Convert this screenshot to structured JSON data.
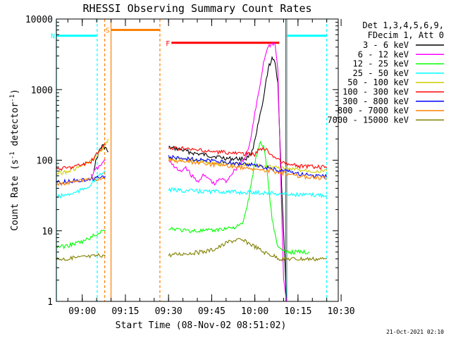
{
  "chart_data": {
    "type": "line",
    "title": "RHESSI Observing Summary Count Rates",
    "xlabel": "Start Time (08-Nov-02 08:51:02)",
    "ylabel_main": "Count Rate (s",
    "ylabel_sup1": "-1",
    "ylabel_mid": " detector",
    "ylabel_sup2": "-1",
    "ylabel_end": ")",
    "x_axis": {
      "unit": "minutes since 08:51:02",
      "range": [
        0,
        98
      ]
    },
    "y_axis": {
      "scale": "log",
      "range": [
        1,
        10000
      ]
    },
    "x_ticks": [
      {
        "label": "09:00",
        "minute": 9
      },
      {
        "label": "09:15",
        "minute": 24
      },
      {
        "label": "09:30",
        "minute": 39
      },
      {
        "label": "09:45",
        "minute": 54
      },
      {
        "label": "10:00",
        "minute": 69
      },
      {
        "label": "10:15",
        "minute": 84
      },
      {
        "label": "10:30",
        "minute": 99
      }
    ],
    "y_ticks": [
      {
        "label": "1",
        "value": 1
      },
      {
        "label": "10",
        "value": 10
      },
      {
        "label": "100",
        "value": 100
      },
      {
        "label": "1000",
        "value": 1000
      },
      {
        "label": "10000",
        "value": 10000
      }
    ],
    "legend_header": [
      "Det 1,3,4,5,6,9,",
      "FDecim 1, Att 0"
    ],
    "legend_placement": "right",
    "footer_date": "21-Oct-2021 02:10",
    "series": [
      {
        "name": "3 - 6 keV",
        "color": "#000000",
        "segments": [
          [
            [
              13,
              75
            ],
            [
              14,
              105
            ],
            [
              15,
              140
            ],
            [
              16,
              160
            ],
            [
              17,
              150
            ],
            [
              18,
              130
            ]
          ],
          [
            [
              39,
              150
            ],
            [
              42,
              145
            ],
            [
              45,
              135
            ],
            [
              48,
              125
            ],
            [
              51,
              120
            ],
            [
              54,
              115
            ],
            [
              57,
              110
            ],
            [
              60,
              105
            ],
            [
              63,
              105
            ],
            [
              66,
              105
            ],
            [
              68,
              130
            ],
            [
              70,
              300
            ],
            [
              72,
              700
            ],
            [
              73,
              1400
            ],
            [
              74,
              2200
            ],
            [
              75,
              2700
            ],
            [
              76,
              2400
            ],
            [
              77,
              1300
            ],
            [
              78,
              90
            ],
            [
              79,
              10
            ],
            [
              80,
              1
            ]
          ]
        ]
      },
      {
        "name": "6 - 12 keV",
        "color": "#ff00ff",
        "segments": [
          [
            [
              12,
              60
            ],
            [
              14,
              75
            ],
            [
              16,
              90
            ],
            [
              17,
              100
            ]
          ],
          [
            [
              39,
              110
            ],
            [
              41,
              80
            ],
            [
              43,
              68
            ],
            [
              45,
              80
            ],
            [
              47,
              60
            ],
            [
              49,
              50
            ],
            [
              51,
              60
            ],
            [
              53,
              55
            ],
            [
              55,
              45
            ],
            [
              57,
              55
            ],
            [
              59,
              50
            ],
            [
              61,
              65
            ],
            [
              63,
              80
            ],
            [
              65,
              100
            ],
            [
              67,
              150
            ],
            [
              69,
              450
            ],
            [
              71,
              1300
            ],
            [
              72,
              2400
            ],
            [
              73,
              3500
            ],
            [
              74,
              4200
            ],
            [
              75,
              4500
            ],
            [
              76,
              4400
            ],
            [
              77,
              2000
            ],
            [
              78,
              60
            ],
            [
              79,
              2
            ],
            [
              80,
              1
            ]
          ]
        ]
      },
      {
        "name": "12 - 25 keV",
        "color": "#00ff00",
        "segments": [
          [
            [
              0,
              6
            ],
            [
              3,
              6
            ],
            [
              6,
              6.5
            ],
            [
              9,
              7
            ],
            [
              12,
              8
            ],
            [
              14,
              9
            ],
            [
              16,
              10
            ],
            [
              17,
              10
            ]
          ],
          [
            [
              39,
              11
            ],
            [
              42,
              10.5
            ],
            [
              45,
              10
            ],
            [
              48,
              10
            ],
            [
              51,
              10
            ],
            [
              54,
              10
            ],
            [
              57,
              10.5
            ],
            [
              60,
              11
            ],
            [
              63,
              11.5
            ],
            [
              65,
              13
            ],
            [
              66,
              20
            ],
            [
              67,
              30
            ],
            [
              68,
              55
            ],
            [
              69,
              90
            ],
            [
              70,
              140
            ],
            [
              71,
              180
            ],
            [
              72,
              160
            ],
            [
              73,
              90
            ],
            [
              74,
              35
            ],
            [
              75,
              15
            ],
            [
              76,
              9
            ],
            [
              77,
              6
            ],
            [
              79,
              5
            ],
            [
              82,
              5
            ],
            [
              85,
              5
            ],
            [
              88,
              5
            ]
          ]
        ]
      },
      {
        "name": "25 - 50 keV",
        "color": "#00ffff",
        "segments": [
          [
            [
              0,
              30
            ],
            [
              3,
              32
            ],
            [
              6,
              34
            ],
            [
              9,
              38
            ],
            [
              12,
              45
            ],
            [
              14,
              55
            ],
            [
              16,
              65
            ],
            [
              17,
              70
            ]
          ],
          [
            [
              39,
              38
            ],
            [
              45,
              37
            ],
            [
              51,
              36
            ],
            [
              57,
              36
            ],
            [
              63,
              35
            ],
            [
              69,
              35
            ],
            [
              75,
              34
            ],
            [
              81,
              33
            ],
            [
              87,
              32
            ],
            [
              94,
              32
            ]
          ]
        ]
      },
      {
        "name": "50 - 100 keV",
        "color": "#cccc00",
        "segments": [
          [
            [
              0,
              65
            ],
            [
              4,
              70
            ],
            [
              8,
              80
            ],
            [
              12,
              95
            ],
            [
              15,
              130
            ],
            [
              17,
              160
            ],
            [
              18,
              200
            ]
          ],
          [
            [
              39,
              105
            ],
            [
              45,
              100
            ],
            [
              51,
              95
            ],
            [
              57,
              90
            ],
            [
              63,
              88
            ],
            [
              69,
              85
            ],
            [
              75,
              80
            ],
            [
              81,
              75
            ],
            [
              87,
              72
            ],
            [
              94,
              70
            ]
          ]
        ]
      },
      {
        "name": "100 - 300 keV",
        "color": "#ff0000",
        "segments": [
          [
            [
              0,
              75
            ],
            [
              4,
              78
            ],
            [
              8,
              85
            ],
            [
              12,
              95
            ],
            [
              14,
              120
            ],
            [
              16,
              150
            ],
            [
              17,
              170
            ]
          ],
          [
            [
              39,
              150
            ],
            [
              45,
              145
            ],
            [
              51,
              135
            ],
            [
              57,
              130
            ],
            [
              63,
              125
            ],
            [
              69,
              120
            ],
            [
              71,
              150
            ],
            [
              73,
              140
            ],
            [
              75,
              120
            ],
            [
              77,
              100
            ],
            [
              80,
              88
            ],
            [
              85,
              82
            ],
            [
              90,
              80
            ],
            [
              94,
              78
            ]
          ]
        ]
      },
      {
        "name": "300 - 800 keV",
        "color": "#0000ff",
        "segments": [
          [
            [
              0,
              48
            ],
            [
              4,
              50
            ],
            [
              8,
              52
            ],
            [
              12,
              55
            ],
            [
              15,
              58
            ],
            [
              17,
              60
            ]
          ],
          [
            [
              39,
              110
            ],
            [
              45,
              105
            ],
            [
              51,
              100
            ],
            [
              57,
              95
            ],
            [
              63,
              90
            ],
            [
              69,
              85
            ],
            [
              75,
              75
            ],
            [
              81,
              68
            ],
            [
              87,
              62
            ],
            [
              94,
              58
            ]
          ]
        ]
      },
      {
        "name": "800 - 7000 keV",
        "color": "#ff8000",
        "segments": [
          [
            [
              0,
              45
            ],
            [
              4,
              48
            ],
            [
              8,
              50
            ],
            [
              12,
              53
            ],
            [
              15,
              55
            ],
            [
              17,
              57
            ]
          ],
          [
            [
              39,
              100
            ],
            [
              45,
              95
            ],
            [
              51,
              90
            ],
            [
              57,
              85
            ],
            [
              63,
              80
            ],
            [
              69,
              75
            ],
            [
              75,
              70
            ],
            [
              81,
              63
            ],
            [
              87,
              58
            ],
            [
              94,
              55
            ]
          ]
        ]
      },
      {
        "name": "7000 - 15000 keV",
        "color": "#808000",
        "segments": [
          [
            [
              0,
              4
            ],
            [
              4,
              4
            ],
            [
              8,
              4.2
            ],
            [
              12,
              4.3
            ],
            [
              15,
              4.5
            ],
            [
              17,
              4.5
            ]
          ],
          [
            [
              39,
              4.5
            ],
            [
              45,
              4.8
            ],
            [
              51,
              5
            ],
            [
              55,
              5.5
            ],
            [
              57,
              6
            ],
            [
              60,
              7
            ],
            [
              63,
              7.5
            ],
            [
              66,
              7
            ],
            [
              69,
              6
            ],
            [
              72,
              5
            ],
            [
              75,
              4.5
            ],
            [
              78,
              4
            ],
            [
              84,
              4
            ],
            [
              90,
              4
            ],
            [
              94,
              4
            ]
          ]
        ]
      }
    ],
    "flags": [
      {
        "code": "S",
        "color": "#ff8000",
        "x_start": 19,
        "x_end": 36,
        "y": 7000
      },
      {
        "code": "F",
        "color": "#ff0000",
        "x_start": 40,
        "x_end": 77.5,
        "y": 4600
      },
      {
        "code": "N",
        "color": "#00ffff",
        "x_start": 0,
        "x_end": 14,
        "y": 5800
      },
      {
        "code": "",
        "color": "#00ffff",
        "x_start": 80,
        "x_end": 94,
        "y": 5800
      }
    ],
    "vlines": [
      {
        "x": 0,
        "color": "#00ffff",
        "style": "solid"
      },
      {
        "x": 14.2,
        "color": "#00ffff",
        "style": "dashed"
      },
      {
        "x": 16.8,
        "color": "#ff8000",
        "style": "dashed"
      },
      {
        "x": 19,
        "color": "#ff8000",
        "style": "solid"
      },
      {
        "x": 36,
        "color": "#ff8000",
        "style": "dashed"
      },
      {
        "x": 79.8,
        "color": "#ff0000",
        "style": "solid"
      },
      {
        "x": 80.2,
        "color": "#00ffff",
        "style": "solid"
      },
      {
        "x": 94,
        "color": "#00ffff",
        "style": "dashed"
      }
    ]
  }
}
